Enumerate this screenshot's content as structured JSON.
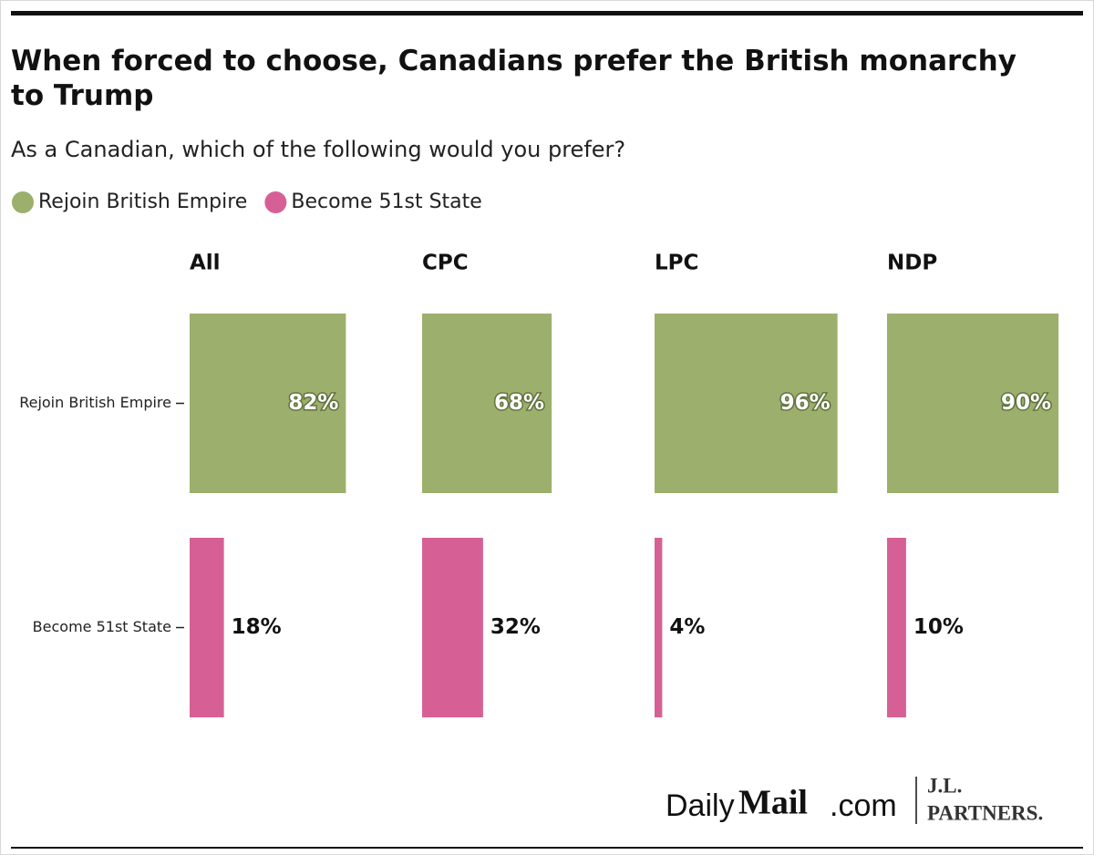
{
  "chart_data": {
    "type": "bar",
    "orientation": "horizontal",
    "title": "When forced to choose, Canadians prefer the British monarchy to Trump",
    "subtitle": "As a Canadian, which of the following would you prefer?",
    "categories": [
      "Rejoin British Empire",
      "Become 51st State"
    ],
    "colors": [
      "#9caf6c",
      "#d66096"
    ],
    "xlim": [
      0,
      100
    ],
    "panels": [
      {
        "title": "All",
        "values": [
          82,
          18
        ],
        "value_labels": [
          "82%",
          "18%"
        ]
      },
      {
        "title": "CPC",
        "values": [
          68,
          32
        ],
        "value_labels": [
          "68%",
          "32%"
        ]
      },
      {
        "title": "LPC",
        "values": [
          96,
          4
        ],
        "value_labels": [
          "96%",
          "4%"
        ]
      },
      {
        "title": "NDP",
        "values": [
          90,
          10
        ],
        "value_labels": [
          "90%",
          "10%"
        ]
      }
    ],
    "source": {
      "daily": "Daily",
      "mail": "Mail",
      "com": ".com",
      "partner_line1": "J.L.",
      "partner_line2": "PARTNERS."
    }
  }
}
